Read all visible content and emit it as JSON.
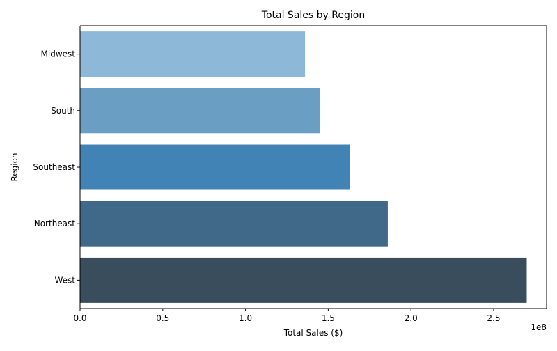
{
  "chart_data": {
    "type": "bar",
    "orientation": "horizontal",
    "title": "Total Sales by Region",
    "xlabel": "Total Sales ($)",
    "ylabel": "Region",
    "x_offset_label": "1e8",
    "categories": [
      "Midwest",
      "South",
      "Southeast",
      "Northeast",
      "West"
    ],
    "values": [
      136000000,
      145000000,
      163000000,
      186000000,
      270000000
    ],
    "xlim": [
      0,
      282000000
    ],
    "x_ticks": [
      0,
      50000000,
      100000000,
      150000000,
      200000000,
      250000000
    ],
    "x_tick_labels": [
      "0.0",
      "0.5",
      "1.0",
      "1.5",
      "2.0",
      "2.5"
    ],
    "colors": [
      "#8db8d8",
      "#6a9ec3",
      "#4283b5",
      "#3f6889",
      "#3a4d5d"
    ],
    "grid": false,
    "legend": "none"
  }
}
